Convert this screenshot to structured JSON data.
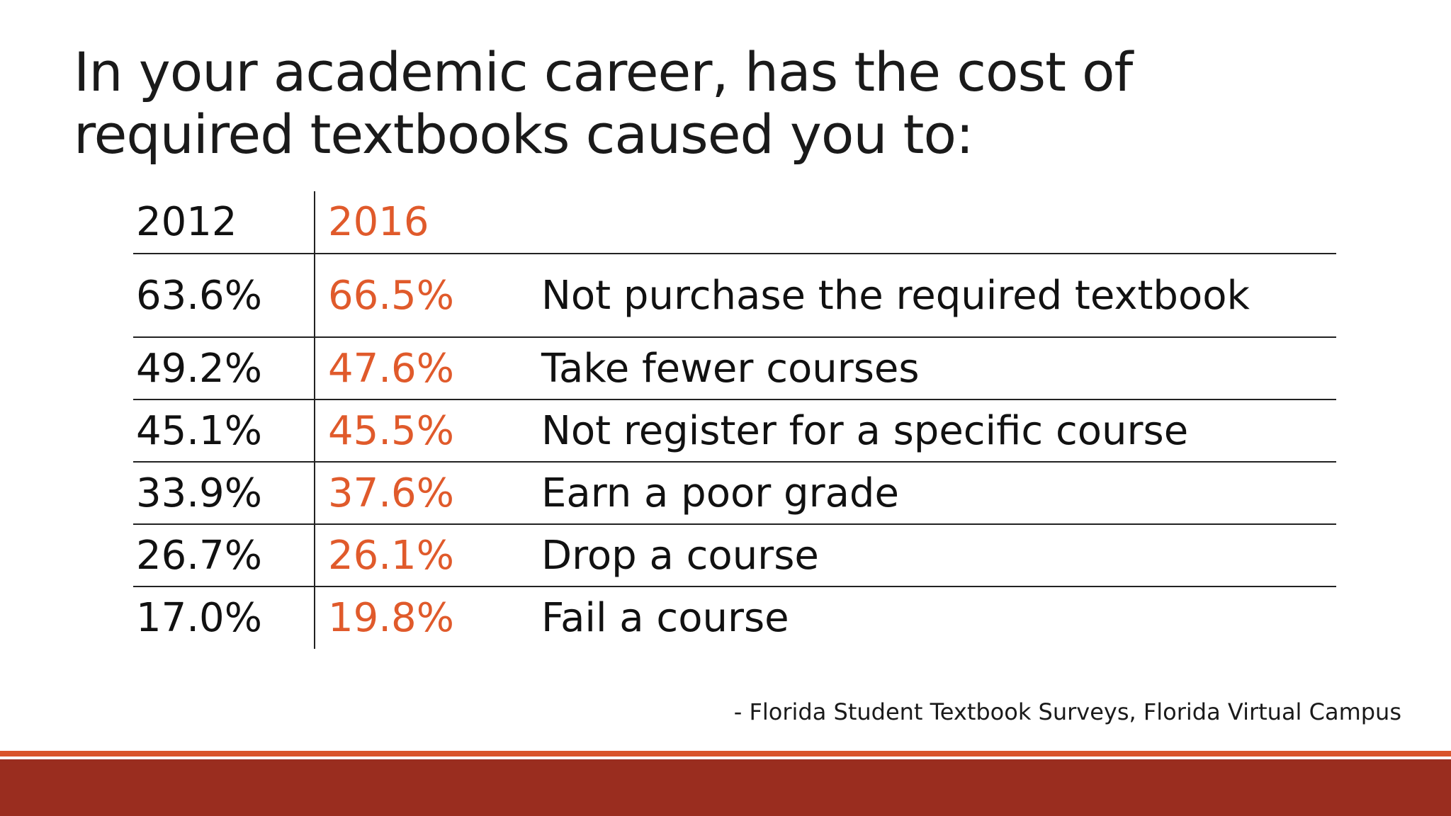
{
  "slide": {
    "title": "In your academic career, has the cost of required textbooks caused you to:",
    "source": "- Florida Student Textbook Surveys, Florida Virtual Campus"
  },
  "table": {
    "headers": {
      "y2012": "2012",
      "y2016": "2016"
    },
    "rows": [
      {
        "y2012": "63.6%",
        "y2016": "66.5%",
        "label": "Not purchase the required textbook"
      },
      {
        "y2012": "49.2%",
        "y2016": "47.6%",
        "label": "Take fewer courses"
      },
      {
        "y2012": "45.1%",
        "y2016": "45.5%",
        "label": "Not register for a specific course"
      },
      {
        "y2012": "33.9%",
        "y2016": "37.6%",
        "label": "Earn a poor grade"
      },
      {
        "y2012": "26.7%",
        "y2016": "26.1%",
        "label": "Drop a course"
      },
      {
        "y2012": "17.0%",
        "y2016": "19.8%",
        "label": "Fail a course"
      }
    ]
  },
  "colors": {
    "accent_orange": "#e05a2b",
    "bar_thin": "#d9542a",
    "bar_thick": "#9a2d1f",
    "text": "#1a1a1a"
  }
}
